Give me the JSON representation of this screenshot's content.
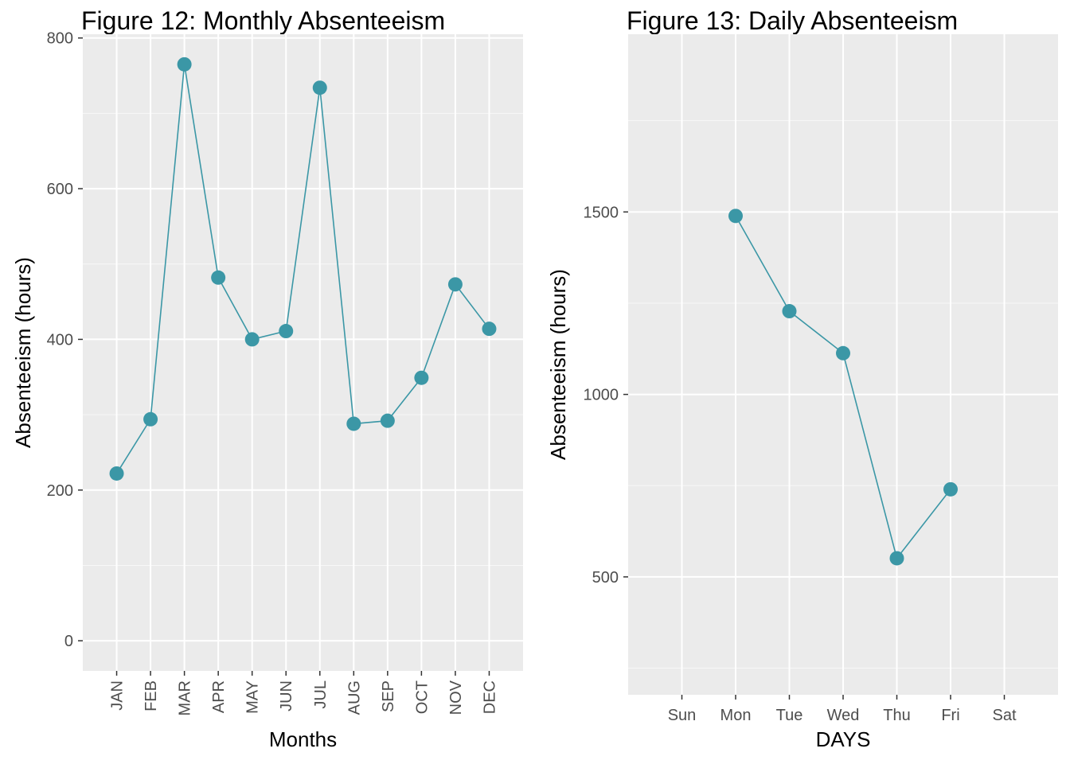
{
  "colors": {
    "panel_bg": "#ebebeb",
    "grid_major": "#ffffff",
    "series": "#3b97a6",
    "tick": "#333333"
  },
  "chart_data": [
    {
      "type": "line",
      "title": "Figure 12: Monthly Absenteeism",
      "xlabel": "Months",
      "ylabel": "Absenteeism (hours)",
      "categories": [
        "JAN",
        "FEB",
        "MAR",
        "APR",
        "MAY",
        "JUN",
        "JUL",
        "AUG",
        "SEP",
        "OCT",
        "NOV",
        "DEC"
      ],
      "values": [
        222,
        294,
        765,
        482,
        400,
        411,
        734,
        288,
        292,
        349,
        473,
        414
      ],
      "ylim": [
        -40,
        805
      ],
      "yticks": [
        0,
        200,
        400,
        600,
        800
      ],
      "ytick_labels": [
        "0",
        "200",
        "400",
        "600",
        "800"
      ],
      "markers": true,
      "grid": true,
      "rotate_x_labels": true
    },
    {
      "type": "line",
      "title": "Figure 13: Daily Absenteeism",
      "xlabel": "DAYS",
      "ylabel": "Absenteeism (hours)",
      "categories": [
        "Sun",
        "Mon",
        "Tue",
        "Wed",
        "Thu",
        "Fri",
        "Sat"
      ],
      "values": [
        null,
        1489,
        1228,
        1113,
        551,
        740,
        null
      ],
      "ylim": [
        177,
        1987
      ],
      "yticks": [
        500,
        1000,
        1500
      ],
      "ytick_labels": [
        "500",
        "1000",
        "1500"
      ],
      "markers": true,
      "grid": true,
      "rotate_x_labels": false
    }
  ]
}
